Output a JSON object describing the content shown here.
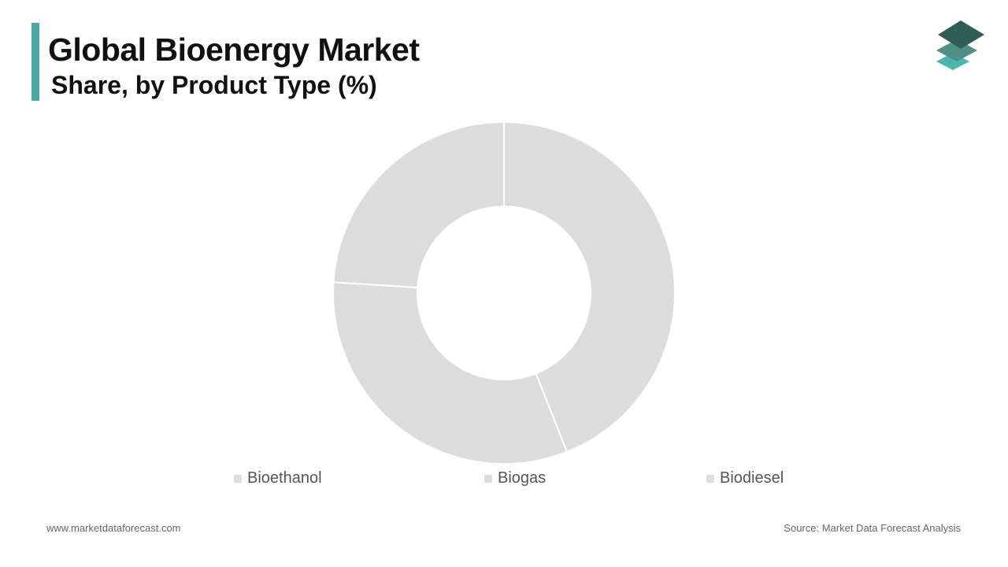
{
  "header": {
    "title": "Global Bioenergy Market",
    "subtitle": "Share, by Product Type (%)"
  },
  "footer": {
    "website": "www.marketdataforecast.com",
    "source": "Source: Market Data Forecast Analysis"
  },
  "logo": {
    "icon": "stacked-layers-icon",
    "colors": [
      "#2f5e57",
      "#4f8f86",
      "#4ab5ad"
    ]
  },
  "colors": {
    "accent": "#4aa8a5",
    "slice": "#dcdcdc",
    "slice_border": "#ffffff"
  },
  "chart_data": {
    "type": "pie",
    "variant": "donut",
    "categories": [
      "Bioethanol",
      "Biogas",
      "Biodiesel"
    ],
    "values": [
      44,
      32,
      24
    ],
    "legend_position": "bottom"
  }
}
